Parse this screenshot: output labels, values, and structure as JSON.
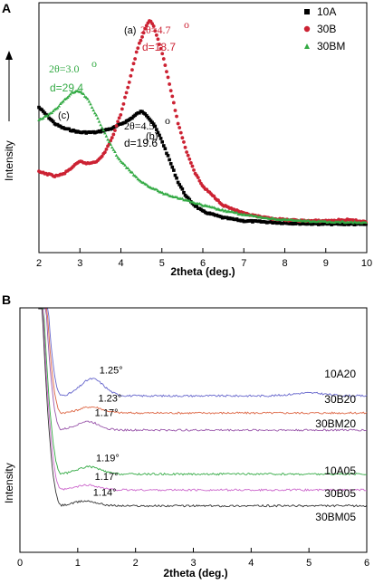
{
  "chart_data": [
    {
      "panel": "A",
      "type": "scatter",
      "xlabel": "2theta (deg.)",
      "ylabel": "Intensity",
      "xlim": [
        2,
        10
      ],
      "xticks": [
        2,
        3,
        4,
        5,
        6,
        7,
        8,
        9,
        10
      ],
      "legend_position": "top-right",
      "series": [
        {
          "name": "10A",
          "color": "#000000",
          "marker": "square",
          "x": [
            2.0,
            2.2,
            2.4,
            2.6,
            2.8,
            3.0,
            3.2,
            3.4,
            3.6,
            3.8,
            4.0,
            4.2,
            4.4,
            4.5,
            4.6,
            4.8,
            5.0,
            5.2,
            5.4,
            5.6,
            5.8,
            6.0,
            6.5,
            7.0,
            7.5,
            8.0,
            8.5,
            9.0,
            9.5,
            10.0
          ],
          "y": [
            0.58,
            0.54,
            0.5,
            0.48,
            0.47,
            0.46,
            0.46,
            0.46,
            0.47,
            0.48,
            0.5,
            0.52,
            0.55,
            0.56,
            0.55,
            0.5,
            0.42,
            0.32,
            0.22,
            0.15,
            0.11,
            0.08,
            0.05,
            0.035,
            0.03,
            0.025,
            0.022,
            0.02,
            0.02,
            0.018
          ]
        },
        {
          "name": "30B",
          "color": "#cc2233",
          "marker": "circle",
          "x": [
            2.0,
            2.2,
            2.4,
            2.6,
            2.8,
            3.0,
            3.2,
            3.4,
            3.6,
            3.8,
            4.0,
            4.2,
            4.4,
            4.6,
            4.7,
            4.8,
            5.0,
            5.2,
            5.4,
            5.6,
            5.8,
            6.0,
            6.5,
            7.0,
            7.5,
            8.0,
            8.5,
            9.0,
            9.5,
            10.0
          ],
          "y": [
            0.27,
            0.26,
            0.25,
            0.26,
            0.29,
            0.32,
            0.31,
            0.32,
            0.36,
            0.44,
            0.55,
            0.7,
            0.86,
            0.96,
            1.0,
            0.97,
            0.85,
            0.68,
            0.5,
            0.37,
            0.27,
            0.2,
            0.11,
            0.07,
            0.05,
            0.04,
            0.035,
            0.035,
            0.04,
            0.03
          ]
        },
        {
          "name": "30BM",
          "color": "#33aa44",
          "marker": "triangle",
          "x": [
            2.0,
            2.2,
            2.4,
            2.6,
            2.8,
            3.0,
            3.2,
            3.4,
            3.6,
            3.8,
            4.0,
            4.5,
            5.0,
            5.5,
            6.0,
            6.5,
            7.0,
            7.5,
            8.0,
            8.5,
            9.0,
            9.5,
            10.0
          ],
          "y": [
            0.52,
            0.54,
            0.57,
            0.61,
            0.65,
            0.66,
            0.62,
            0.54,
            0.46,
            0.38,
            0.32,
            0.22,
            0.17,
            0.14,
            0.11,
            0.085,
            0.065,
            0.05,
            0.04,
            0.035,
            0.03,
            0.03,
            0.025
          ]
        }
      ],
      "annotations": {
        "label_a": "(a)",
        "theta_30b": "2θ=4.7",
        "d_30b": "d=18.7",
        "label_b": "(b)",
        "theta_10a": "2θ=4.5",
        "d_10a": "d=19.6",
        "label_c": "(c)",
        "theta_30bm": "2θ=3.0",
        "d_30bm": "d=29.4",
        "degree": "o"
      }
    },
    {
      "panel": "B",
      "type": "line",
      "xlabel": "2theta (deg.)",
      "ylabel": "Intensity",
      "xlim": [
        0,
        6
      ],
      "xticks": [
        0,
        1,
        2,
        3,
        4,
        5,
        6
      ],
      "series": [
        {
          "name": "10A20",
          "color": "#6666cc",
          "peak_label": "1.25°",
          "peak_x": 1.25,
          "baseline": 0.64,
          "peak_height": 0.07
        },
        {
          "name": "30B20",
          "color": "#dd6644",
          "peak_label": "1.23°",
          "peak_x": 1.23,
          "baseline": 0.57,
          "peak_height": 0.025
        },
        {
          "name": "30BM20",
          "color": "#9955aa",
          "peak_label": "1.17°",
          "peak_x": 1.17,
          "baseline": 0.5,
          "peak_height": 0.035
        },
        {
          "name": "10A05",
          "color": "#33aa44",
          "peak_label": "1.19°",
          "peak_x": 1.19,
          "baseline": 0.32,
          "peak_height": 0.03
        },
        {
          "name": "30B05",
          "color": "#cc66cc",
          "peak_label": "1.17°",
          "peak_x": 1.17,
          "baseline": 0.255,
          "peak_height": 0.02
        },
        {
          "name": "30BM05",
          "color": "#333333",
          "peak_label": "1.14°",
          "peak_x": 1.14,
          "baseline": 0.19,
          "peak_height": 0.02
        }
      ]
    }
  ]
}
